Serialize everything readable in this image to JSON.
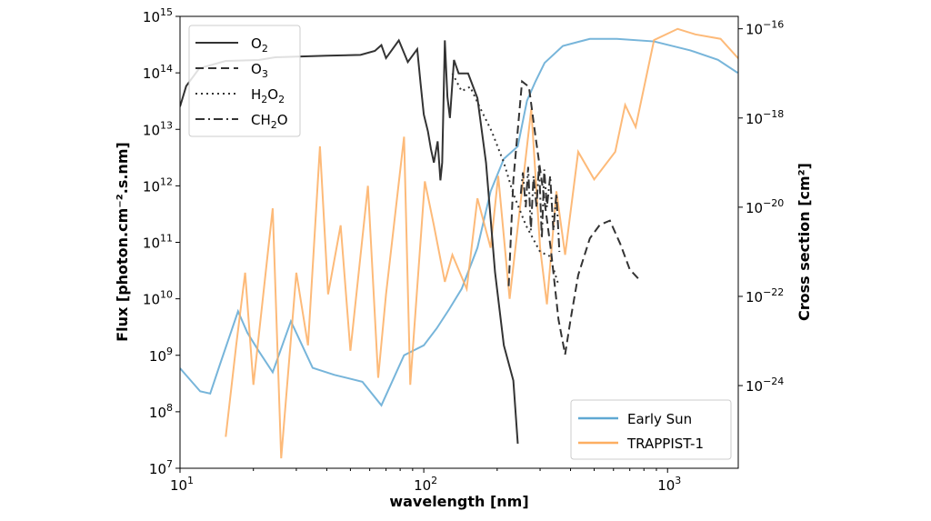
{
  "chart_data": {
    "type": "line",
    "xlabel": "wavelength [nm]",
    "ylabel": "Flux [photon.cm⁻².s.nm]",
    "y2label": "Cross section [cm²]",
    "xscale": "log",
    "yscale": "log",
    "y2scale": "log",
    "xlim": [
      10,
      1950
    ],
    "ylim": [
      10000000.0,
      1000000000000000.0
    ],
    "y2lim": [
      1.4e-26,
      1.9e-16
    ],
    "xticks": [
      {
        "v": 10,
        "b": "10",
        "e": "1"
      },
      {
        "v": 100,
        "b": "10",
        "e": "2"
      },
      {
        "v": 1000,
        "b": "10",
        "e": "3"
      }
    ],
    "yticks": [
      {
        "v": 10000000.0,
        "b": "10",
        "e": "7"
      },
      {
        "v": 100000000.0,
        "b": "10",
        "e": "8"
      },
      {
        "v": 1000000000.0,
        "b": "10",
        "e": "9"
      },
      {
        "v": 10000000000.0,
        "b": "10",
        "e": "10"
      },
      {
        "v": 100000000000.0,
        "b": "10",
        "e": "11"
      },
      {
        "v": 1000000000000.0,
        "b": "10",
        "e": "12"
      },
      {
        "v": 10000000000000.0,
        "b": "10",
        "e": "13"
      },
      {
        "v": 100000000000000.0,
        "b": "10",
        "e": "14"
      },
      {
        "v": 1000000000000000.0,
        "b": "10",
        "e": "15"
      }
    ],
    "y2ticks": [
      {
        "v": 1e-24,
        "b": "10",
        "e": "−24"
      },
      {
        "v": 1e-22,
        "b": "10",
        "e": "−22"
      },
      {
        "v": 1e-20,
        "b": "10",
        "e": "−20"
      },
      {
        "v": 1e-18,
        "b": "10",
        "e": "−18"
      },
      {
        "v": 1e-16,
        "b": "10",
        "e": "−16"
      }
    ],
    "grid": false,
    "flux_series": [
      {
        "name": "Early Sun",
        "color": "#5fa8d3",
        "x": [
          10,
          12.1,
          13.3,
          14.6,
          17.3,
          18.9,
          21,
          24,
          28.5,
          35,
          43,
          56,
          67,
          83,
          100,
          113,
          127,
          143,
          166,
          188,
          213,
          243,
          265,
          287,
          313,
          372,
          480,
          620,
          880,
          1240,
          1610,
          1940
        ],
        "y": [
          590000000.0,
          230000000.0,
          210000000.0,
          700000000.0,
          6000000000.0,
          2500000000.0,
          1200000000.0,
          500000000.0,
          4000000000.0,
          600000000.0,
          450000000.0,
          340000000.0,
          130000000.0,
          1000000000.0,
          1500000000.0,
          3000000000.0,
          6500000000.0,
          15000000000.0,
          80000000000.0,
          800000000000.0,
          3000000000000.0,
          5000000000000.0,
          32000000000000.0,
          70000000000000.0,
          150000000000000.0,
          300000000000000.0,
          400000000000000.0,
          400000000000000.0,
          360000000000000.0,
          250000000000000.0,
          170000000000000.0,
          100000000000000.0
        ]
      },
      {
        "name": "TRAPPIST-1",
        "color": "#fdae61",
        "x": [
          15.4,
          17,
          18.5,
          20,
          24,
          26,
          30,
          33.5,
          37.5,
          40.5,
          45.6,
          50,
          59,
          65,
          70,
          83,
          88,
          101,
          110,
          122,
          131,
          150,
          166,
          188,
          202,
          225,
          276,
          300,
          320,
          350,
          380,
          430,
          500,
          610,
          670,
          740,
          880,
          1100,
          1300,
          1650,
          1950
        ],
        "y": [
          36000000.0,
          1500000000.0,
          29000000000.0,
          300000000.0,
          400000000000.0,
          15000000.0,
          29000000000.0,
          1500000000.0,
          5000000000000.0,
          12000000000.0,
          200000000000.0,
          1200000000.0,
          1000000000000.0,
          400000000.0,
          12000000000.0,
          7400000000000.0,
          300000000.0,
          1200000000000.0,
          200000000000.0,
          20000000000.0,
          60000000000.0,
          15000000000.0,
          600000000000.0,
          80000000000.0,
          1500000000000.0,
          10000000000.0,
          23000000000000.0,
          80000000000.0,
          8000000000.0,
          800000000000.0,
          60000000000.0,
          4000000000000.0,
          1300000000000.0,
          4000000000000.0,
          27000000000000.0,
          11000000000000.0,
          380000000000000.0,
          600000000000000.0,
          480000000000000.0,
          400000000000000.0,
          180000000000000.0
        ]
      }
    ],
    "cross_section_series": [
      {
        "name": "O₂",
        "style": "solid",
        "x": [
          10,
          10.6,
          12,
          15.4,
          21,
          24.6,
          40,
          55,
          63,
          67,
          70,
          79,
          86,
          94,
          97,
          100,
          104,
          107,
          110,
          114,
          117,
          119,
          122,
          125,
          128,
          133,
          139,
          152,
          166,
          180,
          196,
          213,
          233,
          243
        ],
        "y": [
          1.8e-18,
          5.2e-18,
          1.3e-17,
          1.9e-17,
          2e-17,
          2.3e-17,
          2.5e-17,
          2.6e-17,
          3.2e-17,
          4.3e-17,
          2.2e-17,
          5.5e-17,
          1.8e-17,
          3.5e-17,
          6e-18,
          1.2e-18,
          5e-19,
          2e-19,
          1e-19,
          3e-19,
          4e-20,
          1e-19,
          5.5e-17,
          3e-18,
          1e-18,
          2e-17,
          1e-17,
          1e-17,
          2.8e-18,
          1e-19,
          3.5e-22,
          8e-24,
          1.3e-24,
          5e-26
        ]
      },
      {
        "name": "O₃",
        "style": "dashed",
        "x": [
          223,
          233,
          253,
          270,
          287,
          310,
          333,
          357,
          380,
          400,
          430,
          480,
          527,
          580,
          640,
          700,
          776
        ],
        "y": [
          1.7e-22,
          4e-20,
          6.6e-18,
          5e-18,
          4e-19,
          2e-20,
          1e-21,
          3e-23,
          5e-24,
          3e-23,
          3e-22,
          2e-21,
          4e-21,
          5e-21,
          1.5e-21,
          4e-22,
          2.2e-22
        ]
      },
      {
        "name": "H₂O₂",
        "style": "dotted",
        "x": [
          131,
          143,
          155,
          172,
          190,
          213,
          233,
          262,
          300,
          328,
          355
        ],
        "y": [
          1e-17,
          4e-18,
          5e-18,
          1.5e-18,
          5e-19,
          1e-19,
          2e-20,
          4e-21,
          1e-21,
          8e-22,
          2e-22
        ]
      },
      {
        "name": "CH₂O",
        "style": "dashdot",
        "x": [
          250,
          255,
          262,
          268,
          275,
          282,
          290,
          297,
          305,
          312,
          320,
          330,
          340,
          350,
          360
        ],
        "y": [
          2e-20,
          6e-20,
          1e-20,
          8e-20,
          3e-21,
          5e-20,
          1e-20,
          9e-20,
          2e-21,
          7e-20,
          1e-20,
          5e-20,
          3e-21,
          2e-20,
          1e-21
        ]
      }
    ],
    "legend_lines": {
      "placement": "top-left",
      "entries": [
        {
          "base": "O",
          "sub": "2",
          "tail": ""
        },
        {
          "base": "O",
          "sub": "3",
          "tail": ""
        },
        {
          "base": "H",
          "sub": "2",
          "tail": "O",
          "sub2": "2"
        },
        {
          "base": "CH",
          "sub": "2",
          "tail": "O"
        }
      ]
    },
    "legend_flux": {
      "placement": "bottom-right",
      "entries": [
        "Early Sun",
        "TRAPPIST-1"
      ]
    }
  }
}
